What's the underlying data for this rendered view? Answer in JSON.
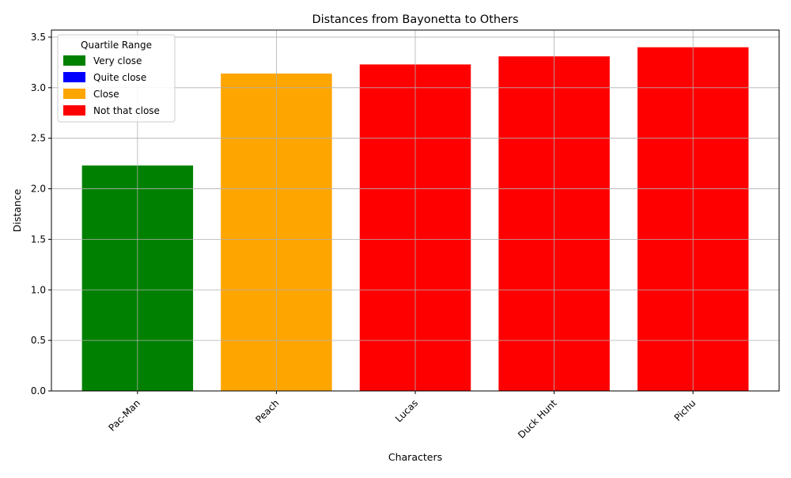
{
  "chart_data": {
    "type": "bar",
    "title": "Distances from Bayonetta to Others",
    "xlabel": "Characters",
    "ylabel": "Distance",
    "categories": [
      "Pac-Man",
      "Peach",
      "Lucas",
      "Duck Hunt",
      "Pichu"
    ],
    "values": [
      2.23,
      3.14,
      3.23,
      3.31,
      3.4
    ],
    "bar_colors": [
      "#008000",
      "#ffa500",
      "#ff0000",
      "#ff0000",
      "#ff0000"
    ],
    "ylim": [
      0,
      3.57
    ],
    "yticks": [
      0.0,
      0.5,
      1.0,
      1.5,
      2.0,
      2.5,
      3.0,
      3.5
    ],
    "ytick_labels": [
      "0.0",
      "0.5",
      "1.0",
      "1.5",
      "2.0",
      "2.5",
      "3.0",
      "3.5"
    ],
    "grid": true,
    "legend": {
      "title": "Quartile Range",
      "placement": "top-left",
      "entries": [
        {
          "label": "Very close",
          "color": "#008000"
        },
        {
          "label": "Quite close",
          "color": "#0000ff"
        },
        {
          "label": "Close",
          "color": "#ffa500"
        },
        {
          "label": "Not that close",
          "color": "#ff0000"
        }
      ]
    }
  }
}
